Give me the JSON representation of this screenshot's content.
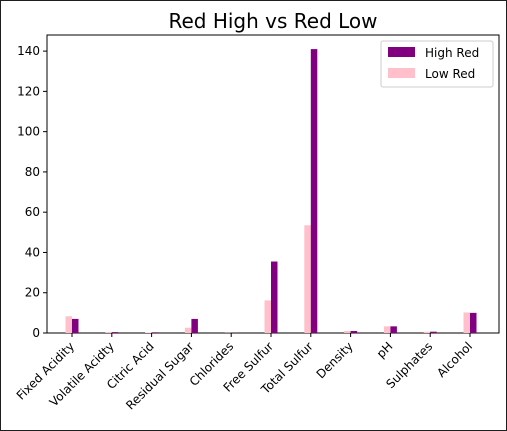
{
  "chart_data": {
    "type": "bar",
    "title": "Red High vs Red Low",
    "xlabel": "",
    "ylabel": "",
    "categories": [
      "Fixed Acidity",
      "Volatile Acidty",
      "Citric Acid",
      "Residual Sugar",
      "Chlorides",
      "Free Sulfur",
      "Total Sulfur",
      "Density",
      "pH",
      "Sulphates",
      "Alcohol"
    ],
    "series": [
      {
        "name": "High Red",
        "color": "#800080",
        "values": [
          7.0,
          0.45,
          0.35,
          7.0,
          0.08,
          35.5,
          141.0,
          1.0,
          3.3,
          0.65,
          10.0
        ]
      },
      {
        "name": "Low Red",
        "color": "#ffc0cb",
        "values": [
          8.3,
          0.55,
          0.25,
          2.6,
          0.09,
          16.2,
          53.5,
          1.0,
          3.3,
          0.63,
          10.2
        ]
      }
    ],
    "ylim": [
      0,
      148
    ],
    "yticks": [
      0,
      20,
      40,
      60,
      80,
      100,
      120,
      140
    ],
    "grid": false,
    "legend": "top-right"
  }
}
